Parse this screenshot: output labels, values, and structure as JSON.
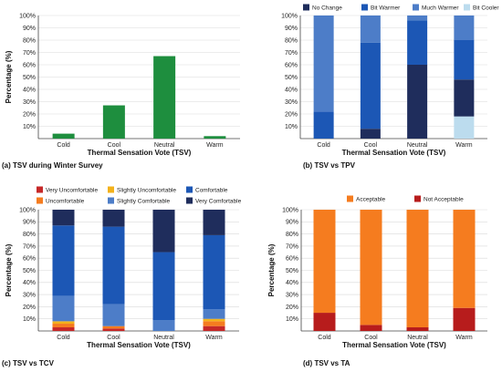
{
  "chart_data": [
    {
      "type": "bar",
      "caption": "(a) TSV during Winter Survey",
      "xlabel": "Thermal Sensation Vote (TSV)",
      "ylabel": "Percentage (%)",
      "ylim": [
        0,
        100
      ],
      "yticks": [
        "10%",
        "20%",
        "30%",
        "40%",
        "50%",
        "60%",
        "70%",
        "80%",
        "90%",
        "100%"
      ],
      "categories": [
        "Cold",
        "Cool",
        "Neutral",
        "Warm"
      ],
      "values": [
        4,
        27,
        67,
        2
      ],
      "color": "#1e8e3e"
    },
    {
      "type": "bar",
      "stacked": true,
      "caption": "(b) TSV vs TPV",
      "xlabel": "Thermal Sensation Vote (TSV)",
      "ylabel": "",
      "ylim": [
        0,
        100
      ],
      "yticks": [
        "10%",
        "20%",
        "30%",
        "40%",
        "50%",
        "60%",
        "70%",
        "80%",
        "90%",
        "100%"
      ],
      "legend_position": "top",
      "categories": [
        "Cold",
        "Cool",
        "Neutral",
        "Warm"
      ],
      "series": [
        {
          "name": "Bit Cooler",
          "color": "#bcdcee",
          "values": [
            0,
            0,
            0,
            18
          ]
        },
        {
          "name": "No Change",
          "color": "#1f2d5c",
          "values": [
            0,
            8,
            60,
            30
          ]
        },
        {
          "name": "Bit Warmer",
          "color": "#1c57b5",
          "values": [
            22,
            70,
            36,
            32
          ]
        },
        {
          "name": "Much Warmer",
          "color": "#4d7dc8",
          "values": [
            78,
            22,
            4,
            20
          ]
        }
      ],
      "legend_order": [
        "No Change",
        "Bit Warmer",
        "Much Warmer",
        "Bit Cooler"
      ]
    },
    {
      "type": "bar",
      "stacked": true,
      "caption": "(c) TSV vs TCV",
      "xlabel": "Thermal Sensation Vote (TSV)",
      "ylabel": "Percentage (%)",
      "ylim": [
        0,
        100
      ],
      "yticks": [
        "10%",
        "20%",
        "30%",
        "40%",
        "50%",
        "60%",
        "70%",
        "80%",
        "90%",
        "100%"
      ],
      "legend_position": "top",
      "categories": [
        "Cold",
        "Cool",
        "Neutral",
        "Warm"
      ],
      "series": [
        {
          "name": "Very Uncomfortable",
          "color": "#c62828",
          "values": [
            3,
            2,
            0,
            4
          ]
        },
        {
          "name": "Uncomfortable",
          "color": "#f57c1f",
          "values": [
            3,
            2,
            0,
            4
          ]
        },
        {
          "name": "Slightly Uncomfortable",
          "color": "#f3b21b",
          "values": [
            2,
            0,
            0,
            2
          ]
        },
        {
          "name": "Slightly Comfortable",
          "color": "#4d7dc8",
          "values": [
            21,
            18,
            9,
            8
          ]
        },
        {
          "name": "Comfortable",
          "color": "#1c57b5",
          "values": [
            58,
            64,
            56,
            61
          ]
        },
        {
          "name": "Very Comfortable",
          "color": "#1f2d5c",
          "values": [
            13,
            14,
            35,
            21
          ]
        }
      ],
      "legend_order": [
        "Very Uncomfortable",
        "Slightly Uncomfortable",
        "Comfortable",
        "Uncomfortable",
        "Slightly Comfortable",
        "Very Comfortable"
      ]
    },
    {
      "type": "bar",
      "stacked": true,
      "caption": "(d) TSV vs TA",
      "xlabel": "Thermal Sensation Vote (TSV)",
      "ylabel": "Percentage (%)",
      "ylim": [
        0,
        100
      ],
      "yticks": [
        "10%",
        "20%",
        "30%",
        "40%",
        "50%",
        "60%",
        "70%",
        "80%",
        "90%",
        "100%"
      ],
      "legend_position": "top",
      "categories": [
        "Cold",
        "Cool",
        "Neutral",
        "Warm"
      ],
      "series": [
        {
          "name": "Not Acceptable",
          "color": "#b71c1c",
          "values": [
            15,
            5,
            3,
            19
          ]
        },
        {
          "name": "Acceptable",
          "color": "#f57c1f",
          "values": [
            85,
            95,
            97,
            81
          ]
        }
      ],
      "legend_order": [
        "Acceptable",
        "Not Acceptable"
      ]
    }
  ]
}
